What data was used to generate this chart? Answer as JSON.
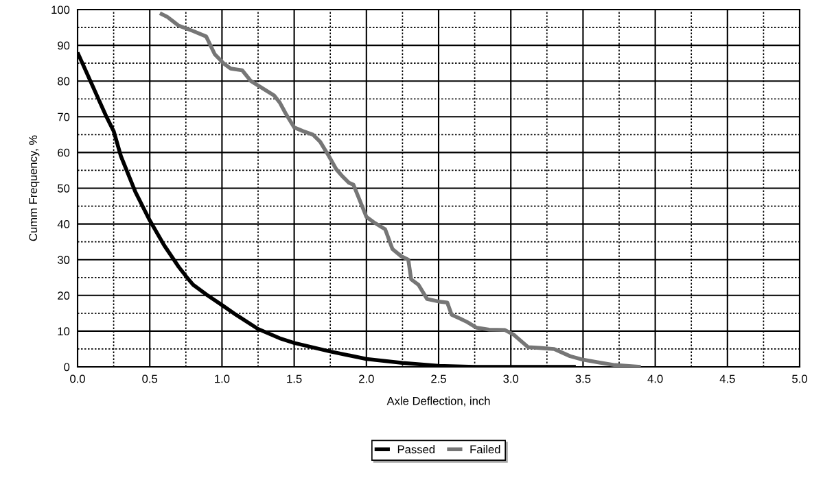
{
  "chart_data": {
    "type": "line",
    "xlabel": "Axle Deflection, inch",
    "ylabel": "Cumm Frequency, %",
    "xlim": [
      0,
      5
    ],
    "xticks": [
      {
        "value": 0,
        "label": "0.0"
      },
      {
        "value": 0.5,
        "label": "0.5"
      },
      {
        "value": 1,
        "label": "1.0"
      },
      {
        "value": 1.5,
        "label": "1.5"
      },
      {
        "value": 2,
        "label": "2.0"
      },
      {
        "value": 2.5,
        "label": "2.5"
      },
      {
        "value": 3,
        "label": "3.0"
      },
      {
        "value": 3.5,
        "label": "3.5"
      },
      {
        "value": 4,
        "label": "4.0"
      },
      {
        "value": 4.5,
        "label": "4.5"
      },
      {
        "value": 5,
        "label": "5.0"
      }
    ],
    "ylim": [
      0,
      100
    ],
    "yticks": [
      0,
      10,
      20,
      30,
      40,
      50,
      60,
      70,
      80,
      90,
      100
    ],
    "grid": true,
    "legend": "bottom",
    "marker": "none",
    "line_style": "solid",
    "series": [
      {
        "name": "Passed",
        "color": "#000000",
        "x": [
          0,
          0.1,
          0.2,
          0.25,
          0.3,
          0.4,
          0.5,
          0.6,
          0.7,
          0.75,
          0.8,
          0.9,
          1.0,
          1.1,
          1.25,
          1.4,
          1.5,
          1.75,
          2.0,
          2.25,
          2.5,
          2.75,
          3.0,
          3.45
        ],
        "values": [
          88,
          79,
          70,
          66,
          59,
          49,
          41,
          34,
          28,
          25.4,
          23,
          20,
          17.3,
          14.5,
          10.6,
          8,
          6.7,
          4.3,
          2.2,
          1.1,
          0.3,
          0,
          0,
          0
        ]
      },
      {
        "name": "Failed",
        "color": "#767676",
        "x": [
          0.57,
          0.62,
          0.7,
          0.8,
          0.89,
          0.95,
          1.01,
          1.06,
          1.14,
          1.2,
          1.28,
          1.36,
          1.4,
          1.44,
          1.5,
          1.56,
          1.63,
          1.68,
          1.74,
          1.79,
          1.83,
          1.88,
          1.91,
          1.97,
          2.0,
          2.05,
          2.13,
          2.18,
          2.24,
          2.29,
          2.31,
          2.36,
          2.42,
          2.5,
          2.56,
          2.59,
          2.65,
          2.7,
          2.76,
          2.85,
          2.96,
          3.02,
          3.12,
          3.2,
          3.3,
          3.41,
          3.5,
          3.6,
          3.72,
          3.9
        ],
        "values": [
          99,
          98,
          95.5,
          94,
          92.5,
          87.5,
          85,
          83.5,
          83,
          80,
          78,
          76,
          74,
          71,
          67,
          66,
          65,
          63,
          59,
          55.4,
          53.5,
          51.5,
          51,
          45,
          42,
          40.5,
          38.5,
          33,
          31,
          30,
          24.5,
          23,
          19,
          18.3,
          18,
          14.6,
          13.5,
          12.5,
          11,
          10.4,
          10.3,
          9,
          5.5,
          5.3,
          5,
          3,
          2,
          1.3,
          0.5,
          0
        ]
      }
    ]
  }
}
